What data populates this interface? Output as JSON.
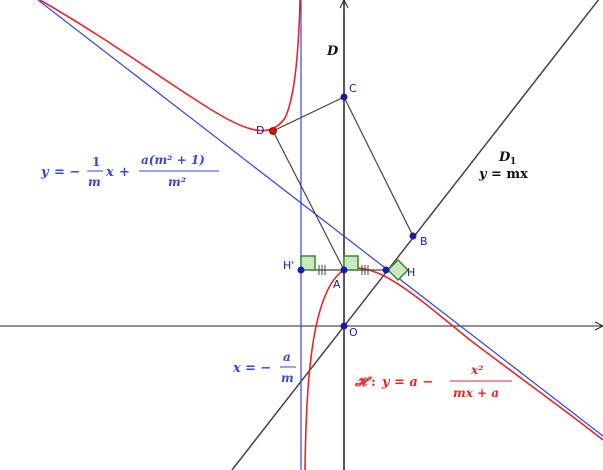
{
  "colors": {
    "curve": "#ee2222",
    "line_blue": "#3344ee",
    "line_dark": "#444444",
    "point": "#1a1aa6",
    "point_D": "#dd1111",
    "right_angle": "#3a8a2a",
    "right_angle_fill": "#c9e8c0"
  },
  "labels": {
    "axis_D": "D",
    "point_C": "C",
    "point_D": "D",
    "point_B": "B",
    "point_H": "H",
    "point_Hp": "H'",
    "point_A": "A",
    "point_O": "O",
    "line_D1_name": "D",
    "line_D1_sub": "1",
    "line_D1_eq_y": "y",
    "line_D1_eq_rest": "= mx",
    "asym_y": "y",
    "asym_eq_neg": "= −",
    "asym_frac1_num": "1",
    "asym_frac1_den": "m",
    "asym_x": "x",
    "asym_plus": "+",
    "asym_frac2_num": "a(m² + 1)",
    "asym_frac2_den": "m²",
    "vert_x": "x",
    "vert_eq": "= −",
    "vert_num": "a",
    "vert_den": "m",
    "curve_name": "𝓗",
    "curve_colon": ":",
    "curve_y": "y",
    "curve_eq_a": "= a −",
    "curve_num": "x²",
    "curve_den": "mx + a"
  }
}
